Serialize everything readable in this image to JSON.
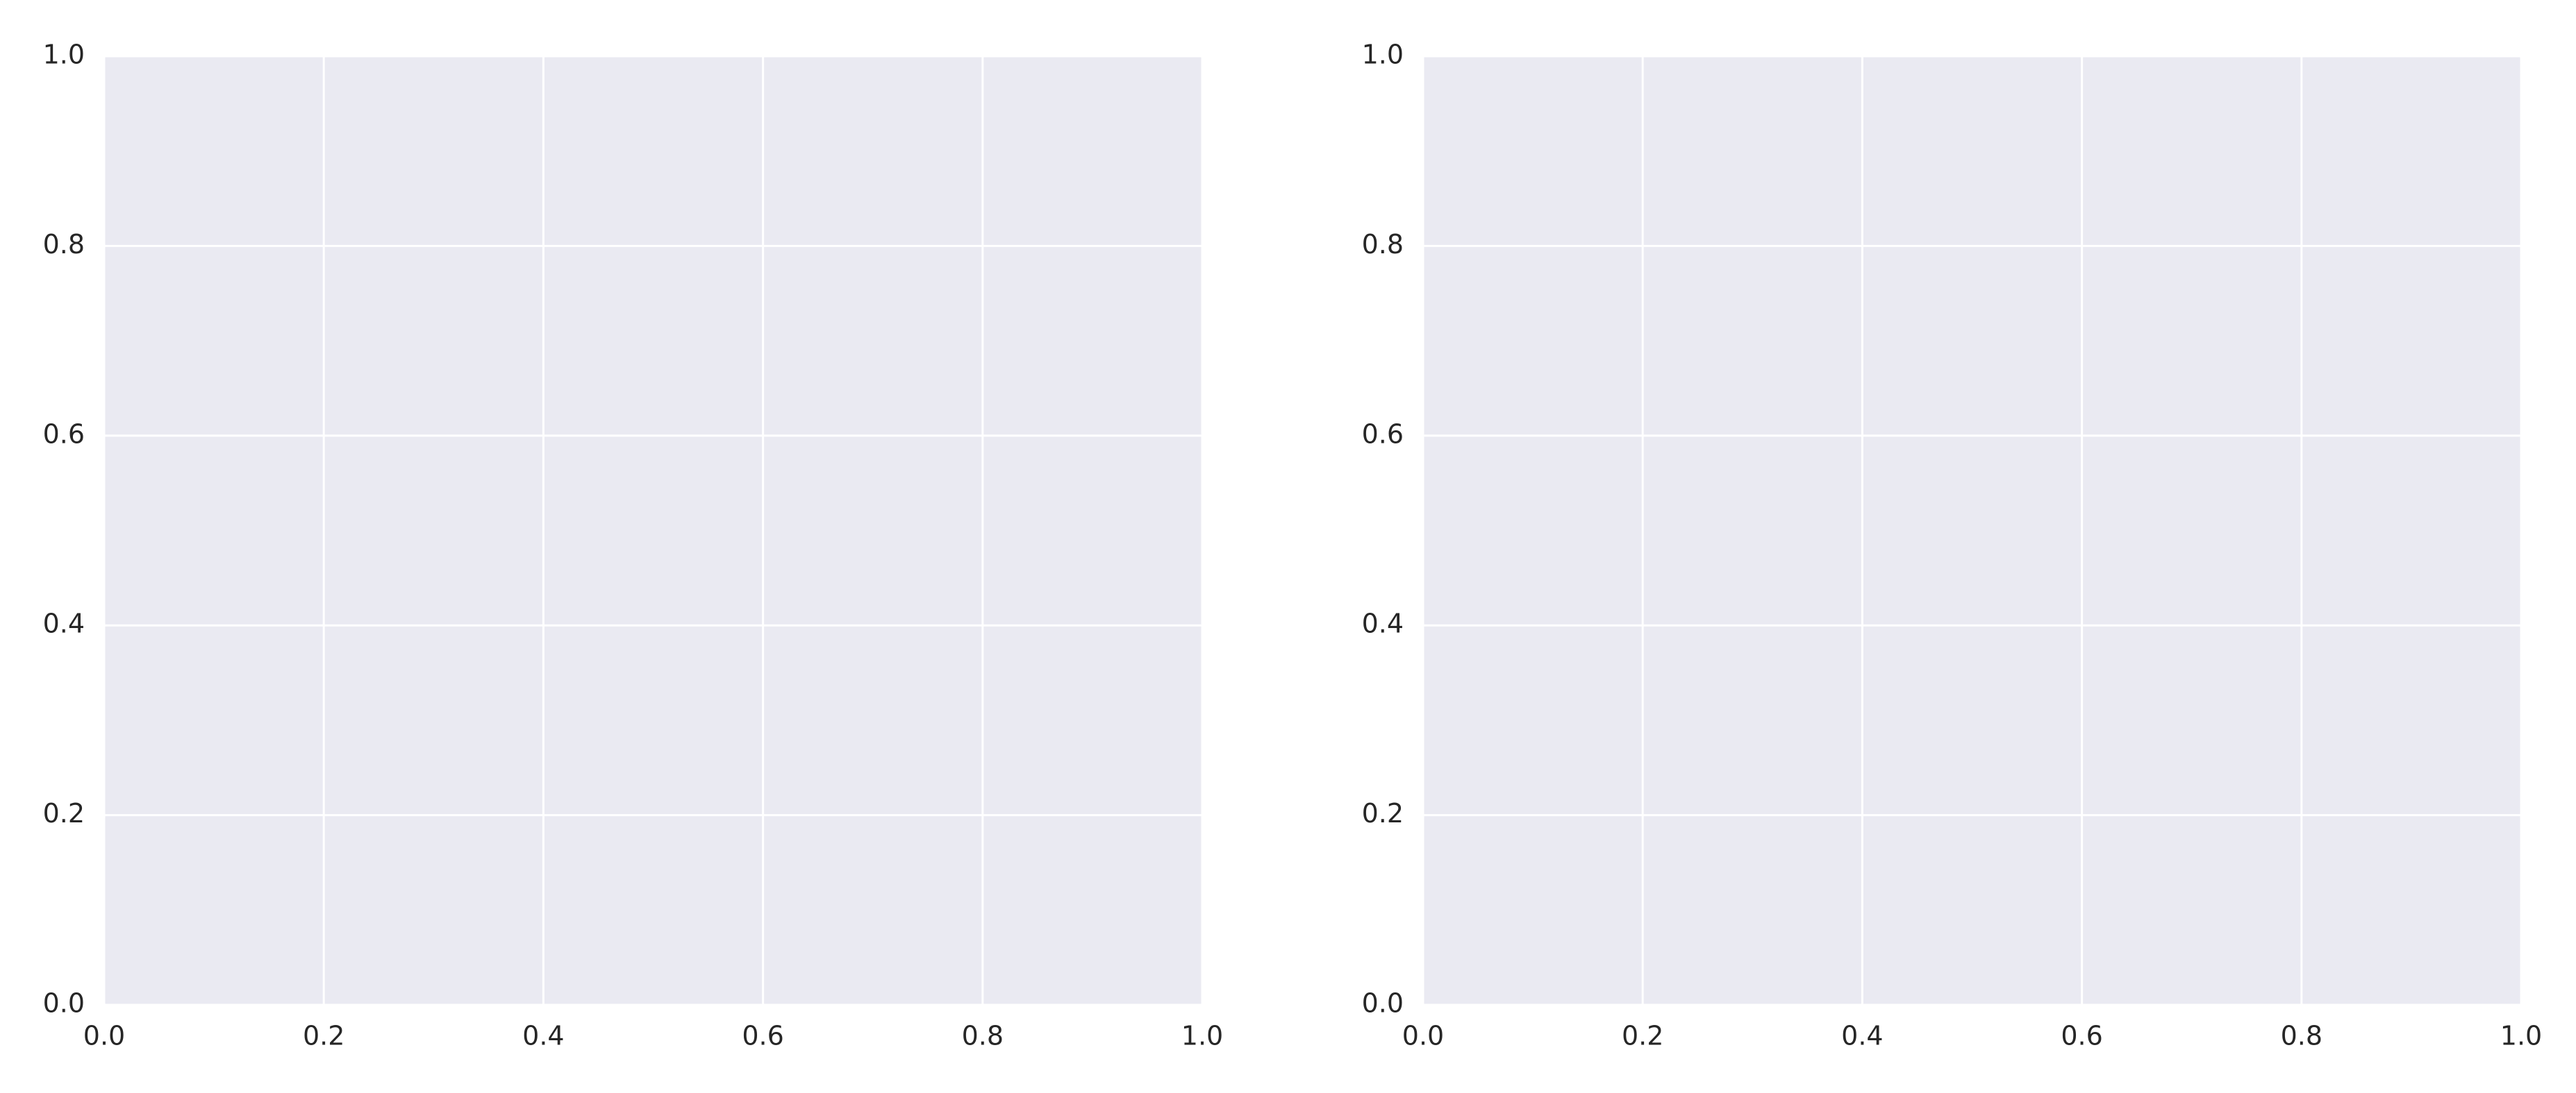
{
  "chart_data": [
    {
      "type": "scatter",
      "xlim": [
        0,
        1
      ],
      "ylim": [
        0,
        1
      ],
      "xticks": [
        {
          "value": 0,
          "label": "0.0"
        },
        0.2,
        0.4,
        0.6,
        0.8,
        {
          "value": 1,
          "label": "1.0"
        }
      ],
      "yticks": [
        {
          "value": 0,
          "label": "0.0"
        },
        0.2,
        0.4,
        0.6,
        0.8,
        {
          "value": 1,
          "label": "1.0"
        }
      ],
      "grid": true,
      "background": "#eaeaf2",
      "grid_color": "#ffffff"
    },
    {
      "type": "scatter",
      "xlim": [
        0,
        1
      ],
      "ylim": [
        0,
        1
      ],
      "xticks": [
        {
          "value": 0,
          "label": "0.0"
        },
        0.2,
        0.4,
        0.6,
        0.8,
        {
          "value": 1,
          "label": "1.0"
        }
      ],
      "yticks": [
        {
          "value": 0,
          "label": "0.0"
        },
        0.2,
        0.4,
        0.6,
        0.8,
        {
          "value": 1,
          "label": "1.0"
        }
      ],
      "grid": true,
      "background": "#eaeaf2",
      "grid_color": "#ffffff"
    }
  ]
}
